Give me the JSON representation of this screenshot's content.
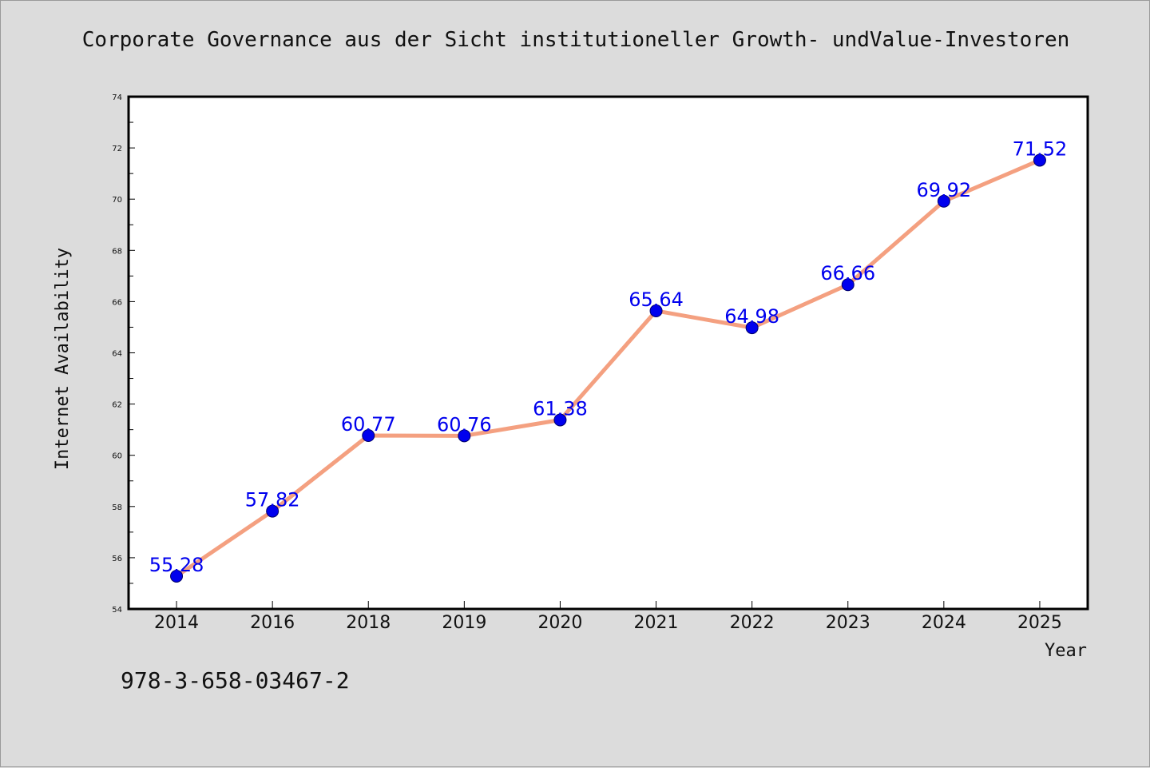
{
  "header": {
    "title": "Corporate Governance aus der Sicht institutioneller Growth- undValue-Investoren"
  },
  "footer": {
    "isbn": "978-3-658-03467-2"
  },
  "chart_data": {
    "type": "line",
    "title": "Corporate Governance aus der Sicht institutioneller Growth- undValue-Investoren",
    "xlabel": "Year",
    "ylabel": "Internet Availability",
    "categories": [
      "2014",
      "2016",
      "2018",
      "2019",
      "2020",
      "2021",
      "2022",
      "2023",
      "2024",
      "2025"
    ],
    "series": [
      {
        "values": [
          55.28,
          57.82,
          60.77,
          60.76,
          61.38,
          65.64,
          64.98,
          66.66,
          69.92,
          71.52
        ],
        "data_labels": [
          "55.28",
          "57.82",
          "60.77",
          "60.76",
          "61.38",
          "65.64",
          "64.98",
          "66.66",
          "69.92",
          "71.52"
        ],
        "line_color": "#f4a080",
        "marker_color": "#0000ee"
      }
    ],
    "ylim": [
      54,
      74
    ],
    "yticks": [
      "54",
      "56",
      "58",
      "60",
      "62",
      "64",
      "66",
      "68",
      "70",
      "72",
      "74"
    ],
    "label_color": "#0000ee",
    "grid": false,
    "legend": "none"
  }
}
